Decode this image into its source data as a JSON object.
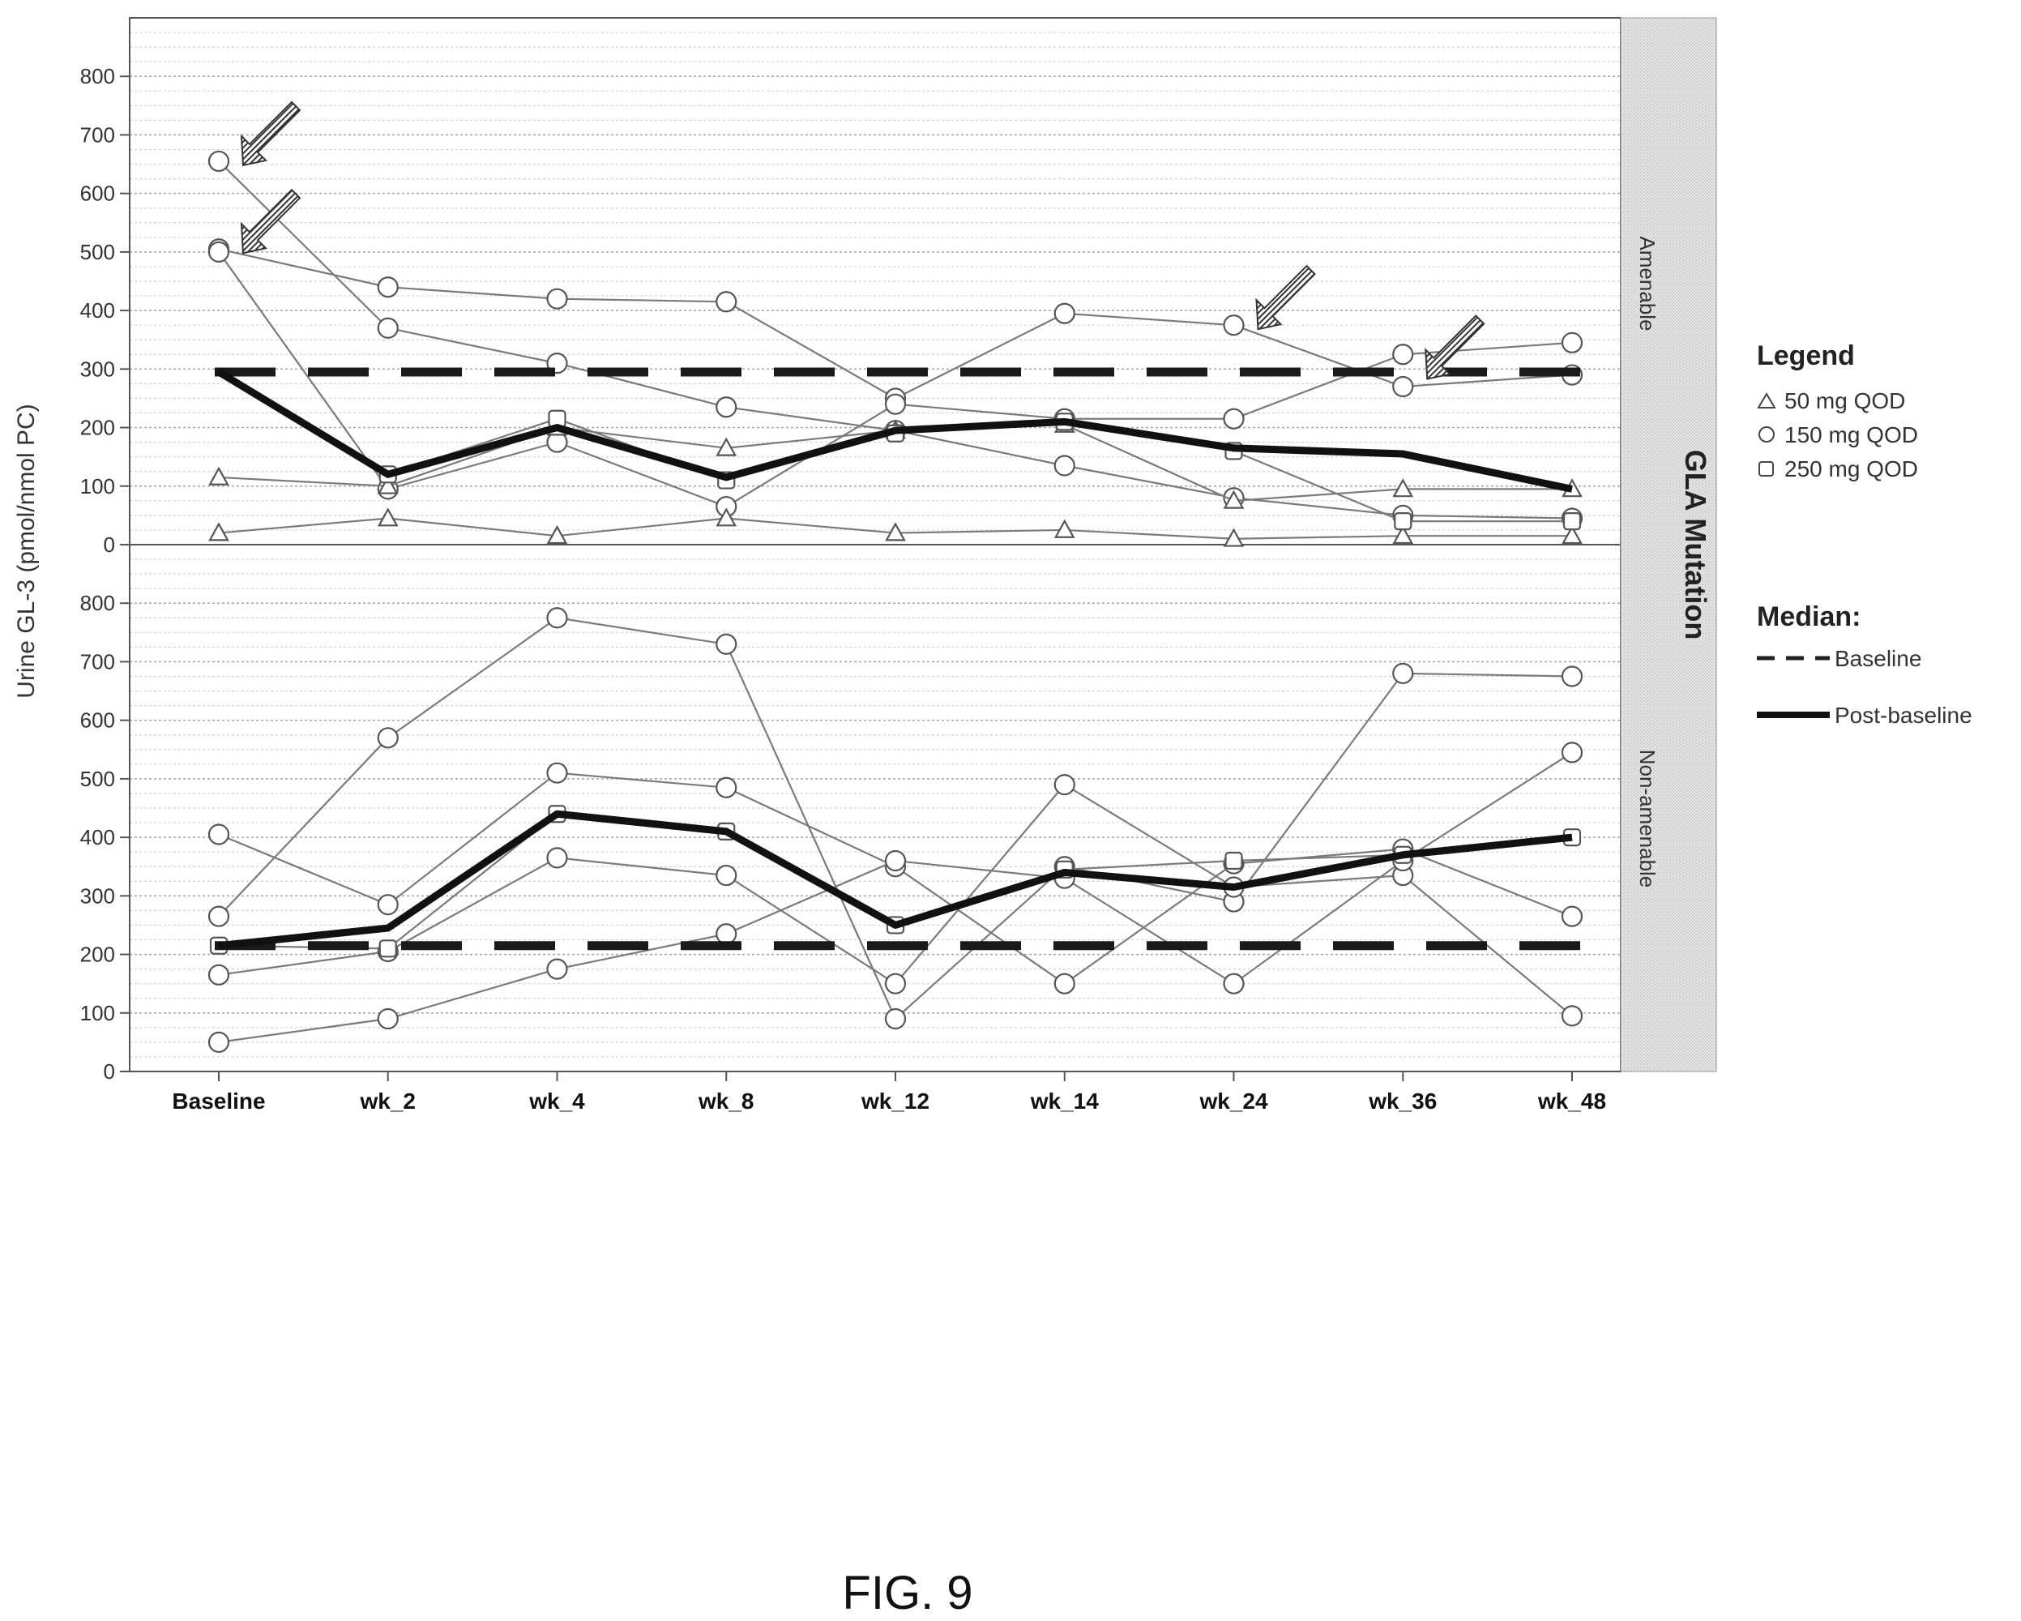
{
  "figure_label": "FIG. 9",
  "chart_data": {
    "type": "line",
    "ylabel": "Urine GL-3 (pmol/nmol PC)",
    "facet_label": "GLA Mutation",
    "categories": [
      "Baseline",
      "wk_2",
      "wk_4",
      "wk_8",
      "wk_12",
      "wk_14",
      "wk_24",
      "wk_36",
      "wk_48"
    ],
    "yticks": [
      "0",
      "100",
      "200",
      "300",
      "400",
      "500",
      "600",
      "700",
      "800"
    ],
    "ylim": [
      0,
      900
    ],
    "grid": true,
    "legend": {
      "title": "Legend",
      "placement": "right",
      "entries": [
        {
          "marker": "triangle",
          "label": "50 mg QOD"
        },
        {
          "marker": "circle",
          "label": "150 mg QOD"
        },
        {
          "marker": "square",
          "label": "250 mg QOD"
        }
      ],
      "median_title": "Median:",
      "median_entries": [
        {
          "style": "dashed",
          "label": "Baseline"
        },
        {
          "style": "solid",
          "label": "Post-baseline"
        }
      ]
    },
    "panels": [
      {
        "name": "Amenable",
        "median_baseline": 295,
        "median_post_baseline": [
          295,
          120,
          200,
          115,
          195,
          210,
          165,
          155,
          95
        ],
        "arrows": [
          {
            "category": "Baseline",
            "value": 655
          },
          {
            "category": "Baseline",
            "value": 505
          },
          {
            "category": "wk_24",
            "value": 375
          },
          {
            "category": "wk_36",
            "value": 290
          }
        ],
        "series": [
          {
            "marker": "circle",
            "values": [
              655,
              370,
              310,
              235,
              195,
              135,
              80,
              50,
              45
            ]
          },
          {
            "marker": "circle",
            "values": [
              505,
              440,
              420,
              415,
              250,
              395,
              375,
              270,
              290
            ]
          },
          {
            "marker": "circle",
            "values": [
              500,
              95,
              175,
              65,
              240,
              215,
              215,
              325,
              345
            ]
          },
          {
            "marker": "triangle",
            "values": [
              115,
              100,
              200,
              165,
              195,
              205,
              75,
              95,
              95
            ]
          },
          {
            "marker": "triangle",
            "values": [
              20,
              45,
              15,
              45,
              20,
              25,
              10,
              15,
              15
            ]
          },
          {
            "marker": "square",
            "values": [
              null,
              120,
              215,
              110,
              190,
              210,
              160,
              40,
              40
            ]
          }
        ]
      },
      {
        "name": "Non-amenable",
        "median_baseline": 215,
        "median_post_baseline": [
          215,
          245,
          440,
          410,
          250,
          340,
          315,
          370,
          400
        ],
        "arrows": [],
        "series": [
          {
            "marker": "circle",
            "values": [
              265,
              570,
              775,
              730,
              90,
              350,
              290,
              680,
              675
            ]
          },
          {
            "marker": "circle",
            "values": [
              405,
              285,
              510,
              485,
              350,
              150,
              355,
              380,
              265
            ]
          },
          {
            "marker": "circle",
            "values": [
              165,
              205,
              365,
              335,
              150,
              490,
              315,
              335,
              95
            ]
          },
          {
            "marker": "circle",
            "values": [
              50,
              90,
              175,
              235,
              360,
              330,
              150,
              360,
              545
            ]
          },
          {
            "marker": "square",
            "values": [
              215,
              210,
              440,
              410,
              250,
              345,
              360,
              370,
              400
            ]
          }
        ]
      }
    ]
  }
}
